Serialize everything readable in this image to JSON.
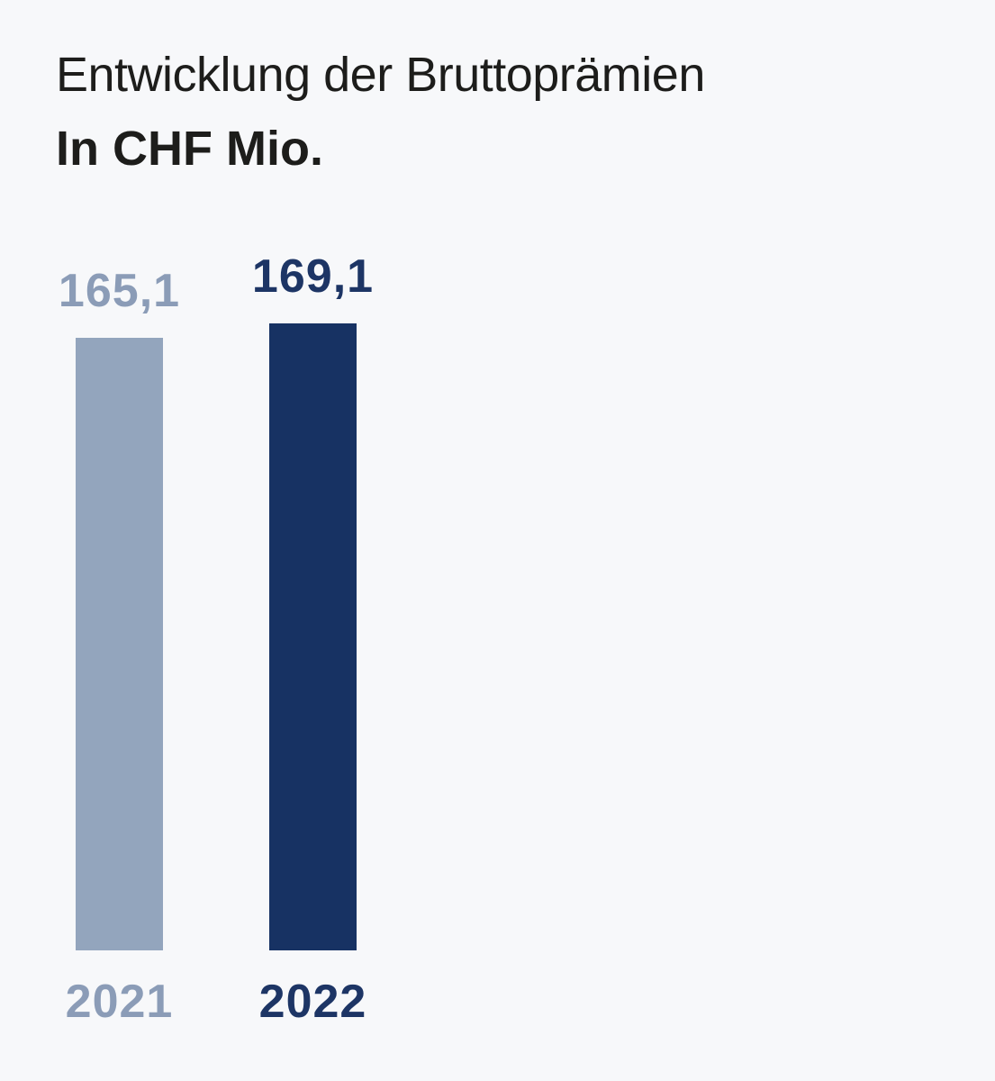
{
  "colors": {
    "background": "#f7f8fa",
    "heading_text": "#1d1d1b"
  },
  "header": {
    "title": "Entwicklung der Bruttoprämien",
    "subtitle": "In CHF Mio."
  },
  "chart_data": {
    "type": "bar",
    "title": "Entwicklung der Bruttoprämien",
    "subtitle": "In CHF Mio.",
    "unit": "CHF Mio.",
    "categories": [
      "2021",
      "2022"
    ],
    "values": [
      165.1,
      169.1
    ],
    "value_labels": [
      "165,1",
      "169,1"
    ],
    "bar_colors": [
      "#93a5bd",
      "#173263"
    ],
    "label_colors": [
      "#8b9cb7",
      "#1d3565"
    ],
    "ylim": [
      0,
      169.1
    ],
    "grid": false,
    "axes_visible": false,
    "legend": "none",
    "value_label_position": "above-bar",
    "category_label_position": "below-bar"
  }
}
